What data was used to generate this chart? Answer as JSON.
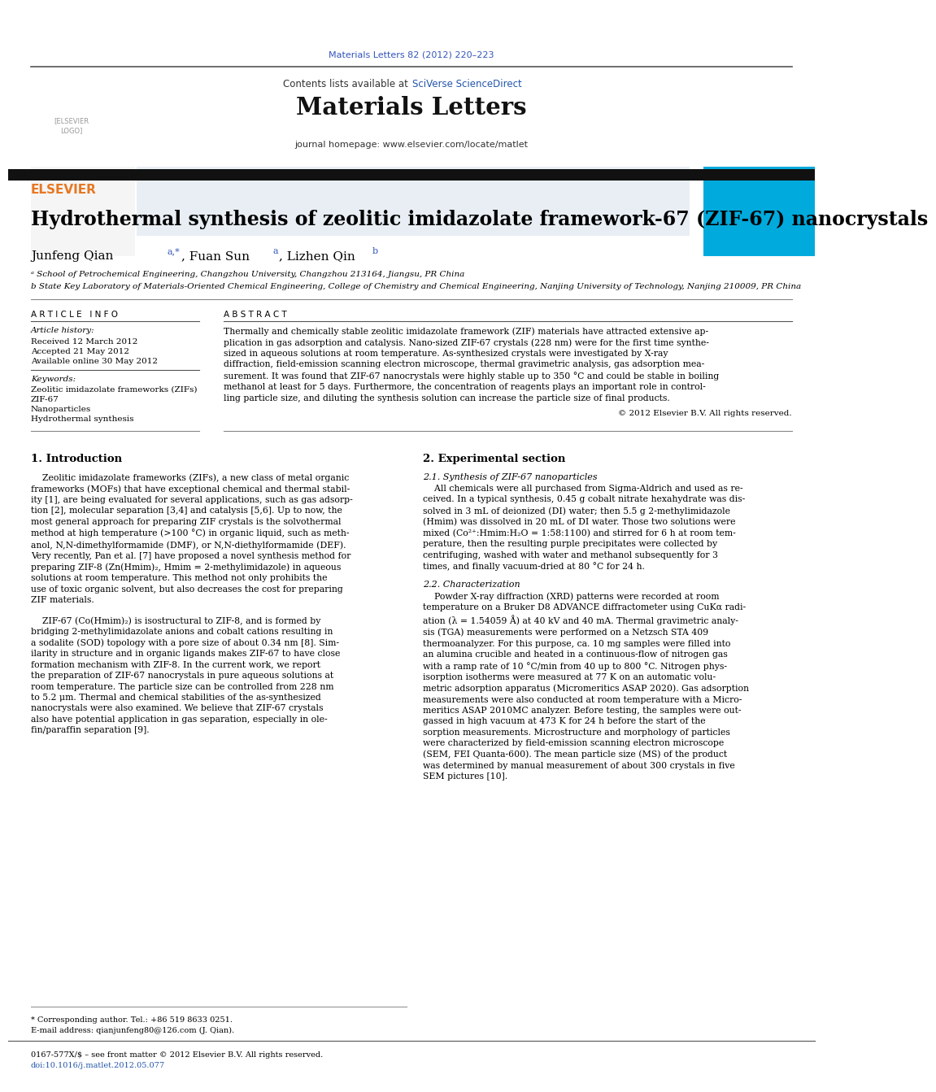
{
  "page_title": "Materials Letters 82 (2012) 220–223",
  "journal_name": "Materials Letters",
  "journal_homepage": "journal homepage: www.elsevier.com/locate/matlet",
  "contents_available": "Contents lists available at ",
  "sciverse": "SciVerse ScienceDirect",
  "paper_title": "Hydrothermal synthesis of zeolitic imidazolate framework-67 (ZIF-67) nanocrystals",
  "affil_a": "a School of Petrochemical Engineering, Changzhou University, Changzhou 213164, Jiangsu, PR China",
  "affil_b": "b State Key Laboratory of Materials-Oriented Chemical Engineering, College of Chemistry and Chemical Engineering, Nanjing University of Technology, Nanjing 210009, PR China",
  "article_info_header": "A R T I C L E   I N F O",
  "abstract_header": "A B S T R A C T",
  "article_history_label": "Article history:",
  "received": "Received 12 March 2012",
  "accepted": "Accepted 21 May 2012",
  "available": "Available online 30 May 2012",
  "keywords_label": "Keywords:",
  "keyword1": "Zeolitic imidazolate frameworks (ZIFs)",
  "keyword2": "ZIF-67",
  "keyword3": "Nanoparticles",
  "keyword4": "Hydrothermal synthesis",
  "abstract_text_lines": [
    "Thermally and chemically stable zeolitic imidazolate framework (ZIF) materials have attracted extensive ap-",
    "plication in gas adsorption and catalysis. Nano-sized ZIF-67 crystals (228 nm) were for the first time synthe-",
    "sized in aqueous solutions at room temperature. As-synthesized crystals were investigated by X-ray",
    "diffraction, field-emission scanning electron microscope, thermal gravimetric analysis, gas adsorption mea-",
    "surement. It was found that ZIF-67 nanocrystals were highly stable up to 350 °C and could be stable in boiling",
    "methanol at least for 5 days. Furthermore, the concentration of reagents plays an important role in control-",
    "ling particle size, and diluting the synthesis solution can increase the particle size of final products."
  ],
  "copyright": "© 2012 Elsevier B.V. All rights reserved.",
  "section1_title": "1. Introduction",
  "section2_title": "2. Experimental section",
  "subsection21_title": "2.1. Synthesis of ZIF-67 nanoparticles",
  "subsection22_title": "2.2. Characterization",
  "intro_para1_lines": [
    "    Zeolitic imidazolate frameworks (ZIFs), a new class of metal organic",
    "frameworks (MOFs) that have exceptional chemical and thermal stabil-",
    "ity [1], are being evaluated for several applications, such as gas adsorp-",
    "tion [2], molecular separation [3,4] and catalysis [5,6]. Up to now, the",
    "most general approach for preparing ZIF crystals is the solvothermal",
    "method at high temperature (>100 °C) in organic liquid, such as meth-",
    "anol, N,N-dimethylformamide (DMF), or N,N-diethylformamide (DEF).",
    "Very recently, Pan et al. [7] have proposed a novel synthesis method for",
    "preparing ZIF-8 (Zn(Hmim)₂, Hmim = 2-methylimidazole) in aqueous",
    "solutions at room temperature. This method not only prohibits the",
    "use of toxic organic solvent, but also decreases the cost for preparing",
    "ZIF materials."
  ],
  "intro_para2_lines": [
    "    ZIF-67 (Co(Hmim)₂) is isostructural to ZIF-8, and is formed by",
    "bridging 2-methylimidazolate anions and cobalt cations resulting in",
    "a sodalite (SOD) topology with a pore size of about 0.34 nm [8]. Sim-",
    "ilarity in structure and in organic ligands makes ZIF-67 to have close",
    "formation mechanism with ZIF-8. In the current work, we report",
    "the preparation of ZIF-67 nanocrystals in pure aqueous solutions at",
    "room temperature. The particle size can be controlled from 228 nm",
    "to 5.2 μm. Thermal and chemical stabilities of the as-synthesized",
    "nanocrystals were also examined. We believe that ZIF-67 crystals",
    "also have potential application in gas separation, especially in ole-",
    "fin/paraffin separation [9]."
  ],
  "exp_text_lines": [
    "    All chemicals were all purchased from Sigma-Aldrich and used as re-",
    "ceived. In a typical synthesis, 0.45 g cobalt nitrate hexahydrate was dis-",
    "solved in 3 mL of deionized (DI) water; then 5.5 g 2-methylimidazole",
    "(Hmim) was dissolved in 20 mL of DI water. Those two solutions were",
    "mixed (Co²⁺:Hmim:H₂O = 1:58:1100) and stirred for 6 h at room tem-",
    "perature, then the resulting purple precipitates were collected by",
    "centrifuging, washed with water and methanol subsequently for 3",
    "times, and finally vacuum-dried at 80 °C for 24 h."
  ],
  "char_text_lines": [
    "    Powder X-ray diffraction (XRD) patterns were recorded at room",
    "temperature on a Bruker D8 ADVANCE diffractometer using CuKα radi-",
    "ation (λ = 1.54059 Å) at 40 kV and 40 mA. Thermal gravimetric analy-",
    "sis (TGA) measurements were performed on a Netzsch STA 409",
    "thermoanalyzer. For this purpose, ca. 10 mg samples were filled into",
    "an alumina crucible and heated in a continuous-flow of nitrogen gas",
    "with a ramp rate of 10 °C/min from 40 up to 800 °C. Nitrogen phys-",
    "isorption isotherms were measured at 77 K on an automatic volu-",
    "metric adsorption apparatus (Micromeritics ASAP 2020). Gas adsorption",
    "measurements were also conducted at room temperature with a Micro-",
    "meritics ASAP 2010MC analyzer. Before testing, the samples were out-",
    "gassed in high vacuum at 473 K for 24 h before the start of the",
    "sorption measurements. Microstructure and morphology of particles",
    "were characterized by field-emission scanning electron microscope",
    "(SEM, FEI Quanta-600). The mean particle size (MS) of the product",
    "was determined by manual measurement of about 300 crystals in five",
    "SEM pictures [10]."
  ],
  "footer_corresp": "* Corresponding author. Tel.: +86 519 8633 0251.",
  "footer_email": "E-mail address: qianjunfeng80@126.com (J. Qian).",
  "footer_issn": "0167-577X/$ – see front matter © 2012 Elsevier B.V. All rights reserved.",
  "footer_doi": "doi:10.1016/j.matlet.2012.05.077",
  "bg_color": "#ffffff",
  "header_bg": "#e8eef4",
  "blue_color": "#3355bb",
  "link_color": "#2255aa",
  "orange_color": "#e87722",
  "dark_bar_color": "#111111",
  "cyan_cover": "#00aadd"
}
